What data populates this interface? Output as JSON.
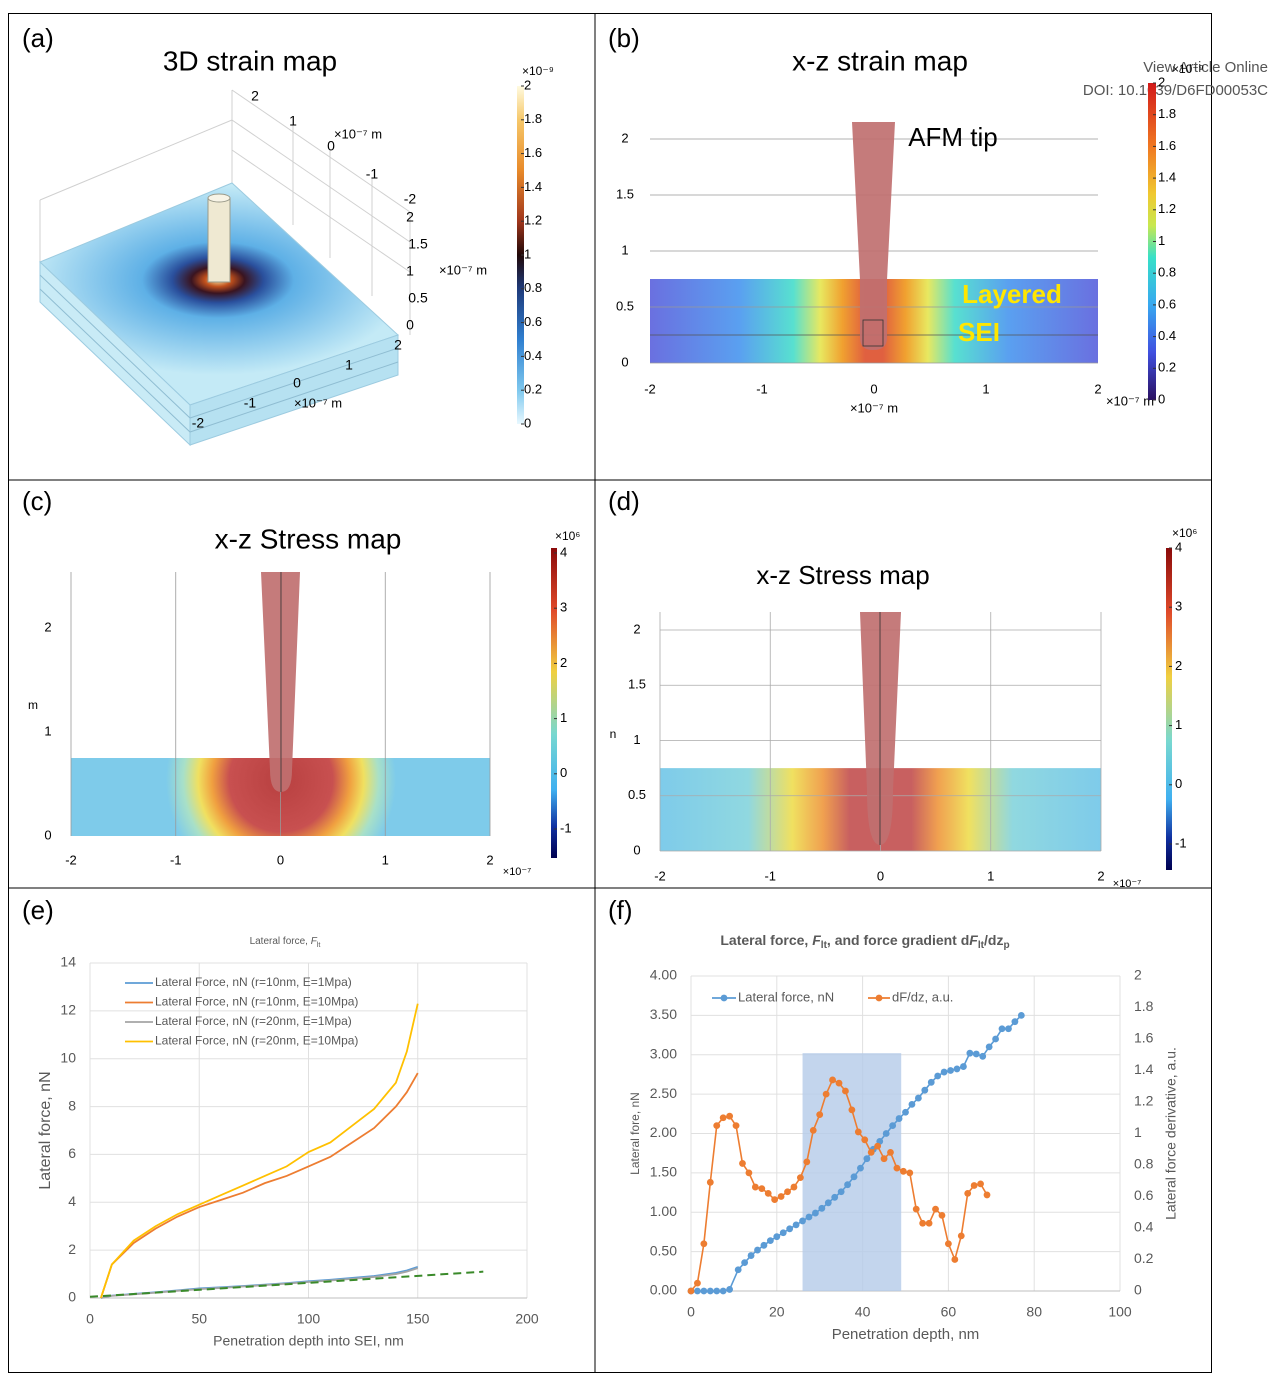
{
  "watermark": {
    "line1": "View Article Online",
    "line2": "DOI: 10.1039/D6FD00053C"
  },
  "panels": [
    {
      "label": "(a)",
      "title": "3D strain map",
      "colorbar": {
        "exponent": "×10⁻⁹",
        "ticks": [
          0,
          0.2,
          0.4,
          0.6,
          0.8,
          1,
          1.2,
          1.4,
          1.6,
          1.8,
          2
        ]
      },
      "x_ticks": [
        2,
        1,
        0,
        -1,
        -2
      ],
      "y_ticks": [
        2,
        1,
        0,
        -1,
        -2
      ],
      "z_ticks": [
        2,
        1.5,
        1,
        0.5,
        0
      ],
      "x_unit": "×10⁻⁷ m",
      "y_unit": "×10⁻⁷ m",
      "z_unit": "×10⁻⁷ m"
    },
    {
      "label": "(b)",
      "title": "x-z strain map",
      "annotations": [
        "AFM tip",
        "Layered",
        "SEI"
      ],
      "xticks": [
        -2,
        -1,
        0,
        1,
        2
      ],
      "yticks": [
        0,
        0.5,
        1,
        1.5,
        2
      ],
      "x_unit": "×10⁻⁷ m",
      "x_unit_right": "×10⁻⁷ m",
      "colorbar": {
        "exponent": "×10⁻⁹",
        "ticks": [
          0,
          0.2,
          0.4,
          0.6,
          0.8,
          1,
          1.2,
          1.4,
          1.6,
          1.8,
          2
        ]
      }
    },
    {
      "label": "(c)",
      "title": "x-z Stress map",
      "xticks": [
        -2,
        -1,
        0,
        1,
        2
      ],
      "yticks": [
        0,
        1,
        2
      ],
      "y_unit": "m",
      "x_unit": "×10⁻⁷",
      "colorbar": {
        "exponent": "×10⁶",
        "ticks": [
          -1,
          0,
          1,
          2,
          3,
          4
        ]
      }
    },
    {
      "label": "(d)",
      "title": "x-z Stress map",
      "xticks": [
        -2,
        -1,
        0,
        1,
        2
      ],
      "yticks": [
        0,
        0.5,
        1,
        1.5,
        2
      ],
      "y_unit": "n",
      "x_unit": "×10⁻⁷",
      "colorbar": {
        "exponent": "×10⁶",
        "ticks": [
          -1,
          0,
          1,
          2,
          3,
          4
        ]
      }
    }
  ],
  "chart_data": [
    {
      "panel_label": "(e)",
      "type": "line",
      "title": [
        "Lateral force, ",
        "F",
        "lt"
      ],
      "x_label": "Penetration depth into SEI, nm",
      "y_label": "Lateral force, nN",
      "xlim": [
        0,
        200
      ],
      "ylim": [
        0,
        14
      ],
      "xticks": [
        0,
        50,
        100,
        150,
        200
      ],
      "yticks": [
        0,
        2,
        4,
        6,
        8,
        10,
        12,
        14
      ],
      "grid": true,
      "x": [
        5,
        10,
        20,
        30,
        40,
        50,
        60,
        70,
        80,
        90,
        100,
        110,
        120,
        130,
        140,
        145,
        150
      ],
      "series": [
        {
          "name": "Lateral Force, nN (r=10nm, E=1Mpa)",
          "color": "#5b9bd5",
          "values": [
            0,
            0.1,
            0.17,
            0.24,
            0.32,
            0.4,
            0.45,
            0.5,
            0.56,
            0.62,
            0.7,
            0.76,
            0.84,
            0.92,
            1.05,
            1.15,
            1.3
          ]
        },
        {
          "name": "Lateral Force, nN (r=10nm, E=10Mpa)",
          "color": "#ed7d31",
          "values": [
            0,
            1.4,
            2.3,
            2.9,
            3.4,
            3.8,
            4.1,
            4.4,
            4.8,
            5.1,
            5.5,
            5.9,
            6.5,
            7.1,
            8.0,
            8.6,
            9.4
          ]
        },
        {
          "name": "Lateral Force, nN (r=20nm, E=1Mpa)",
          "color": "#a5a5a5",
          "values": [
            0,
            0.09,
            0.15,
            0.22,
            0.3,
            0.37,
            0.42,
            0.48,
            0.54,
            0.6,
            0.67,
            0.73,
            0.8,
            0.88,
            1.0,
            1.1,
            1.25
          ]
        },
        {
          "name": "Lateral Force, nN (r=20nm, E=10Mpa)",
          "color": "#ffc000",
          "values": [
            0,
            1.4,
            2.4,
            3.0,
            3.5,
            3.9,
            4.3,
            4.7,
            5.1,
            5.5,
            6.1,
            6.5,
            7.2,
            7.9,
            9.0,
            10.3,
            12.3
          ]
        },
        {
          "color": "#3a8a2a",
          "style": "dashed",
          "x": [
            0,
            180
          ],
          "values": [
            0.05,
            1.1
          ]
        }
      ]
    },
    {
      "panel_label": "(f)",
      "type": "line",
      "title": [
        "Lateral force, ",
        "F",
        "lt",
        ", and force gradient d",
        "F",
        "lt",
        "/dz",
        "p"
      ],
      "x_label": "Penetration depth, nm",
      "y_label": "Lateral fore, nN",
      "y2_label": "Lateral force derivative, a.u.",
      "xlim": [
        0,
        100
      ],
      "ylim": [
        0,
        4
      ],
      "y2lim": [
        0,
        2
      ],
      "grid": true,
      "markers": true,
      "xticks": [
        0,
        20,
        40,
        60,
        80,
        100
      ],
      "yticks": [
        {
          "value": 0,
          "label": "0.00"
        },
        {
          "value": 0.5,
          "label": "0.50"
        },
        {
          "value": 1,
          "label": "1.00"
        },
        {
          "value": 1.5,
          "label": "1.50"
        },
        {
          "value": 2,
          "label": "2.00"
        },
        {
          "value": 2.5,
          "label": "2.50"
        },
        {
          "value": 3,
          "label": "3.00"
        },
        {
          "value": 3.5,
          "label": "3.50"
        },
        {
          "value": 4,
          "label": "4.00"
        }
      ],
      "y2ticks": [
        0,
        0.2,
        0.4,
        0.6,
        0.8,
        1,
        1.2,
        1.4,
        1.6,
        1.8,
        2
      ],
      "highlight": {
        "x": [
          26,
          49
        ],
        "y": [
          0,
          3.02
        ],
        "color": "#b4cbe9"
      },
      "series": [
        {
          "name": "Lateral force, nN",
          "color": "#5b9bd5",
          "x": [
            0,
            1.5,
            3,
            4.5,
            6,
            7.5,
            9,
            11,
            12.5,
            14,
            15.5,
            17,
            18.5,
            20,
            21.5,
            23,
            24.5,
            26,
            27.5,
            29,
            30.5,
            32,
            33.5,
            35,
            36.5,
            38,
            39.5,
            41,
            42.5,
            44,
            45.5,
            47,
            48.5,
            50,
            51.5,
            53,
            54.5,
            56,
            57.5,
            59,
            60.5,
            62,
            63.5,
            65,
            66.5,
            68,
            69.5,
            71,
            72.5,
            74,
            75.5,
            77
          ],
          "values": [
            0,
            0,
            0,
            0,
            0,
            0,
            0.02,
            0.27,
            0.36,
            0.45,
            0.52,
            0.58,
            0.64,
            0.69,
            0.74,
            0.79,
            0.84,
            0.89,
            0.94,
            0.99,
            1.05,
            1.12,
            1.19,
            1.26,
            1.35,
            1.45,
            1.56,
            1.68,
            1.8,
            1.9,
            2.0,
            2.1,
            2.19,
            2.27,
            2.37,
            2.45,
            2.55,
            2.65,
            2.73,
            2.78,
            2.8,
            2.82,
            2.85,
            3.02,
            3.01,
            2.98,
            3.1,
            3.2,
            3.33,
            3.33,
            3.42,
            3.5
          ]
        },
        {
          "name": "dF/dz, a.u.",
          "color": "#ed7d31",
          "axis": "y2",
          "x": [
            0,
            1.5,
            3,
            4.5,
            6,
            7.5,
            9,
            10.5,
            12,
            13.5,
            15,
            16.5,
            18,
            19.5,
            21,
            22.5,
            24,
            25.5,
            27,
            28.5,
            30,
            31.5,
            33,
            34.5,
            36,
            37.5,
            39,
            40.5,
            42,
            43.5,
            45,
            46.5,
            48,
            49.5,
            51,
            52.5,
            54,
            55.5,
            57,
            58.5,
            60,
            61.5,
            63,
            64.5,
            66,
            67.5,
            69
          ],
          "values": [
            0,
            0.05,
            0.3,
            0.69,
            1.05,
            1.1,
            1.11,
            1.05,
            0.81,
            0.75,
            0.66,
            0.65,
            0.62,
            0.58,
            0.6,
            0.63,
            0.66,
            0.72,
            0.82,
            1.02,
            1.12,
            1.25,
            1.34,
            1.32,
            1.27,
            1.15,
            1.01,
            0.96,
            0.88,
            0.92,
            0.84,
            0.88,
            0.78,
            0.76,
            0.75,
            0.52,
            0.43,
            0.43,
            0.52,
            0.48,
            0.3,
            0.2,
            0.35,
            0.62,
            0.67,
            0.68,
            0.61
          ]
        }
      ]
    }
  ]
}
